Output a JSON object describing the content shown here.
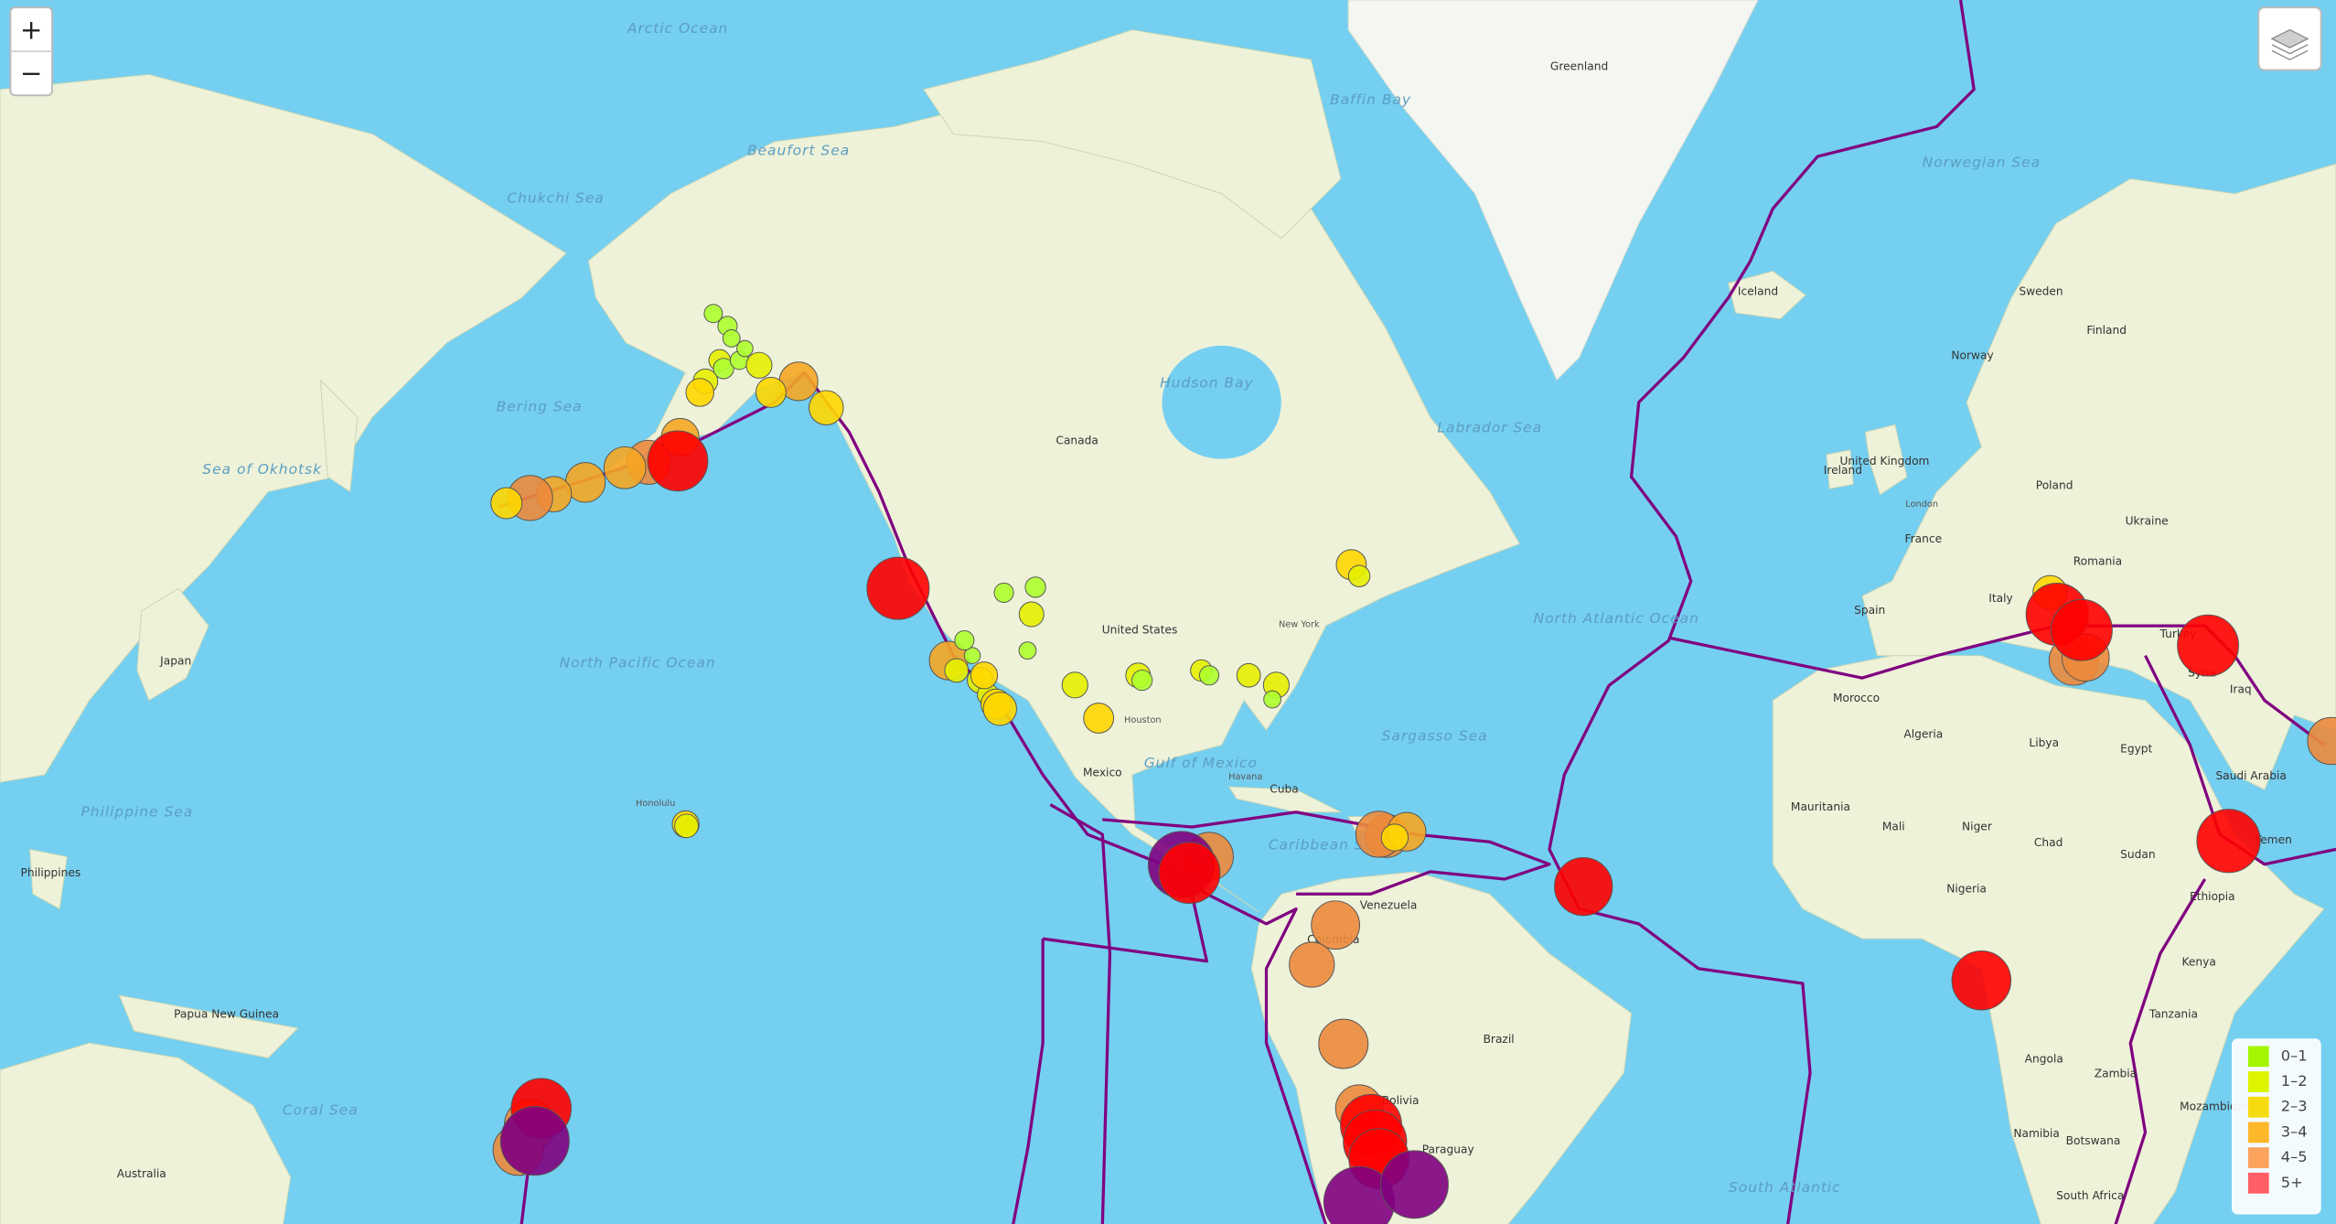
{
  "zoom_control": {
    "zoom_in": "+",
    "zoom_out": "−"
  },
  "legend": {
    "items": [
      {
        "label": "0–1",
        "color": "#a3f600"
      },
      {
        "label": "1–2",
        "color": "#dcf400"
      },
      {
        "label": "2–3",
        "color": "#f7db11"
      },
      {
        "label": "3–4",
        "color": "#fdb72a"
      },
      {
        "label": "4–5",
        "color": "#fca35d"
      },
      {
        "label": "5+",
        "color": "#ff5f65"
      }
    ]
  },
  "marker_colors": [
    {
      "from": 0,
      "color": "#adff2f"
    },
    {
      "from": 2,
      "color": "#e6f000"
    },
    {
      "from": 2.5,
      "color": "#ffd700"
    },
    {
      "from": 3.3,
      "color": "#f5a623"
    },
    {
      "from": 4,
      "color": "#ec8a3c"
    },
    {
      "from": 5,
      "color": "#ff0000"
    },
    {
      "from": 6.1,
      "color": "#800080"
    }
  ],
  "plate_color": "#800080",
  "map_labels": [
    "Arctic Ocean",
    "Beaufort Sea",
    "Chukchi Sea",
    "Bering Sea",
    "Sea of Okhotsk",
    "North Pacific Ocean",
    "Philippine Sea",
    "Coral Sea",
    "Gulf of Mexico",
    "Caribbean Sea",
    "Sargasso Sea",
    "North Atlantic Ocean",
    "South Atlantic",
    "Hudson Bay",
    "Baffin Bay",
    "Labrador Sea",
    "Norwegian Sea",
    "Greenland",
    "Iceland",
    "Canada",
    "United States",
    "Mexico",
    "Cuba",
    "Venezuela",
    "Colombia",
    "Brazil",
    "Bolivia",
    "Paraguay",
    "Japan",
    "Australia",
    "Papua New Guinea",
    "Philippines",
    "Norway",
    "Sweden",
    "Finland",
    "United Kingdom",
    "Ireland",
    "France",
    "Spain",
    "Italy",
    "Poland",
    "Ukraine",
    "Romania",
    "Turkey",
    "Syria",
    "Iraq",
    "Saudi Arabia",
    "Yemen",
    "Egypt",
    "Libya",
    "Algeria",
    "Morocco",
    "Mauritania",
    "Mali",
    "Niger",
    "Chad",
    "Sudan",
    "Nigeria",
    "Ethiopia",
    "Kenya",
    "Tanzania",
    "Angola",
    "Zambia",
    "Namibia",
    "Botswana",
    "Mozambique",
    "South Africa",
    "Honolulu",
    "Houston",
    "New York",
    "Havana",
    "London"
  ],
  "earthquakes": [
    {
      "lon": -150.0,
      "lat": 63.5,
      "mag": 1.8
    },
    {
      "lon": -149.5,
      "lat": 62.8,
      "mag": 1.6
    },
    {
      "lon": -151.0,
      "lat": 61.5,
      "mag": 2.0
    },
    {
      "lon": -150.5,
      "lat": 61.0,
      "mag": 1.9
    },
    {
      "lon": -152.8,
      "lat": 60.2,
      "mag": 2.3
    },
    {
      "lon": -148.5,
      "lat": 61.5,
      "mag": 1.7
    },
    {
      "lon": -147.8,
      "lat": 62.2,
      "mag": 1.5
    },
    {
      "lon": -146.0,
      "lat": 61.2,
      "mag": 2.4
    },
    {
      "lon": -153.5,
      "lat": 59.5,
      "mag": 2.6
    },
    {
      "lon": -151.8,
      "lat": 64.2,
      "mag": 1.7
    },
    {
      "lon": -141.0,
      "lat": 60.2,
      "mag": 3.6
    },
    {
      "lon": -144.5,
      "lat": 59.5,
      "mag": 2.8
    },
    {
      "lon": -137.5,
      "lat": 58.5,
      "mag": 3.2
    },
    {
      "lon": -156.0,
      "lat": 56.5,
      "mag": 3.5
    },
    {
      "lon": -160.0,
      "lat": 54.7,
      "mag": 4.1
    },
    {
      "lon": -163.0,
      "lat": 54.3,
      "mag": 3.9
    },
    {
      "lon": -168.0,
      "lat": 53.2,
      "mag": 3.7
    },
    {
      "lon": -172.0,
      "lat": 52.3,
      "mag": 3.3
    },
    {
      "lon": -175.0,
      "lat": 52.0,
      "mag": 4.2
    },
    {
      "lon": -178.0,
      "lat": 51.6,
      "mag": 2.9
    },
    {
      "lon": -156.3,
      "lat": 54.8,
      "mag": 5.6
    },
    {
      "lon": -128.4,
      "lat": 44.4,
      "mag": 5.8
    },
    {
      "lon": -122.0,
      "lat": 37.5,
      "mag": 3.6
    },
    {
      "lon": -121.0,
      "lat": 36.5,
      "mag": 2.2
    },
    {
      "lon": -118.0,
      "lat": 35.5,
      "mag": 2.4
    },
    {
      "lon": -117.0,
      "lat": 34.0,
      "mag": 2.0
    },
    {
      "lon": -116.0,
      "lat": 33.0,
      "mag": 2.8
    },
    {
      "lon": -115.5,
      "lat": 32.5,
      "mag": 3.1
    },
    {
      "lon": -119.0,
      "lat": 38.0,
      "mag": 1.5
    },
    {
      "lon": -120.0,
      "lat": 39.5,
      "mag": 1.8
    },
    {
      "lon": -117.5,
      "lat": 36.0,
      "mag": 2.5
    },
    {
      "lon": -112.0,
      "lat": 38.5,
      "mag": 1.6
    },
    {
      "lon": -111.0,
      "lat": 44.5,
      "mag": 1.9
    },
    {
      "lon": -115.0,
      "lat": 44.0,
      "mag": 1.8
    },
    {
      "lon": -111.5,
      "lat": 42.0,
      "mag": 2.3
    },
    {
      "lon": -106.0,
      "lat": 35.0,
      "mag": 2.4
    },
    {
      "lon": -103.0,
      "lat": 31.5,
      "mag": 2.8
    },
    {
      "lon": -98.0,
      "lat": 36.0,
      "mag": 2.3
    },
    {
      "lon": -97.5,
      "lat": 35.5,
      "mag": 1.9
    },
    {
      "lon": -90.0,
      "lat": 36.5,
      "mag": 2.0
    },
    {
      "lon": -89.0,
      "lat": 36.0,
      "mag": 1.8
    },
    {
      "lon": -84.0,
      "lat": 36.0,
      "mag": 2.2
    },
    {
      "lon": -80.5,
      "lat": 35.0,
      "mag": 2.4
    },
    {
      "lon": -81.0,
      "lat": 33.5,
      "mag": 1.6
    },
    {
      "lon": -71.0,
      "lat": 46.5,
      "mag": 2.8
    },
    {
      "lon": -70.0,
      "lat": 45.5,
      "mag": 2.0
    },
    {
      "lon": -155.3,
      "lat": 19.4,
      "mag": 2.5
    },
    {
      "lon": -155.2,
      "lat": 19.2,
      "mag": 2.2
    },
    {
      "lon": -89.0,
      "lat": 15.5,
      "mag": 4.5
    },
    {
      "lon": -92.5,
      "lat": 14.5,
      "mag": 6.2
    },
    {
      "lon": -91.5,
      "lat": 13.5,
      "mag": 5.7
    },
    {
      "lon": -66.5,
      "lat": 18.0,
      "mag": 4.0
    },
    {
      "lon": -67.5,
      "lat": 18.2,
      "mag": 4.3
    },
    {
      "lon": -64.0,
      "lat": 18.5,
      "mag": 3.6
    },
    {
      "lon": -65.5,
      "lat": 17.8,
      "mag": 2.5
    },
    {
      "lon": -41.6,
      "lat": 11.8,
      "mag": 5.4
    },
    {
      "lon": -73.0,
      "lat": 7.0,
      "mag": 4.5
    },
    {
      "lon": -76.0,
      "lat": 2.0,
      "mag": 4.2
    },
    {
      "lon": -72.0,
      "lat": -8.0,
      "mag": 4.6
    },
    {
      "lon": -70.0,
      "lat": -16.0,
      "mag": 4.4
    },
    {
      "lon": -68.5,
      "lat": -18.0,
      "mag": 5.7
    },
    {
      "lon": -68.0,
      "lat": -20.0,
      "mag": 5.9
    },
    {
      "lon": -67.5,
      "lat": -22.0,
      "mag": 5.6
    },
    {
      "lon": -70.0,
      "lat": -27.0,
      "mag": 6.6
    },
    {
      "lon": -63.0,
      "lat": -25.0,
      "mag": 6.3
    },
    {
      "lon": -175.0,
      "lat": -18.0,
      "mag": 4.8
    },
    {
      "lon": -176.5,
      "lat": -21.0,
      "mag": 4.7
    },
    {
      "lon": -173.6,
      "lat": -16.0,
      "mag": 5.6
    },
    {
      "lon": -174.4,
      "lat": -19.9,
      "mag": 6.4
    },
    {
      "lon": 17.5,
      "lat": 44.0,
      "mag": 3.2
    },
    {
      "lon": 20.5,
      "lat": 37.5,
      "mag": 4.6
    },
    {
      "lon": 22.0,
      "lat": 37.8,
      "mag": 4.4
    },
    {
      "lon": 18.4,
      "lat": 42.0,
      "mag": 5.8
    },
    {
      "lon": 21.5,
      "lat": 40.5,
      "mag": 5.7
    },
    {
      "lon": 37.5,
      "lat": 39.0,
      "mag": 5.7
    },
    {
      "lon": 40.1,
      "lat": 17.4,
      "mag": 5.9
    },
    {
      "lon": 8.8,
      "lat": 0.0,
      "mag": 5.5
    },
    {
      "lon": 53.1,
      "lat": 29.0,
      "mag": 4.4
    }
  ]
}
